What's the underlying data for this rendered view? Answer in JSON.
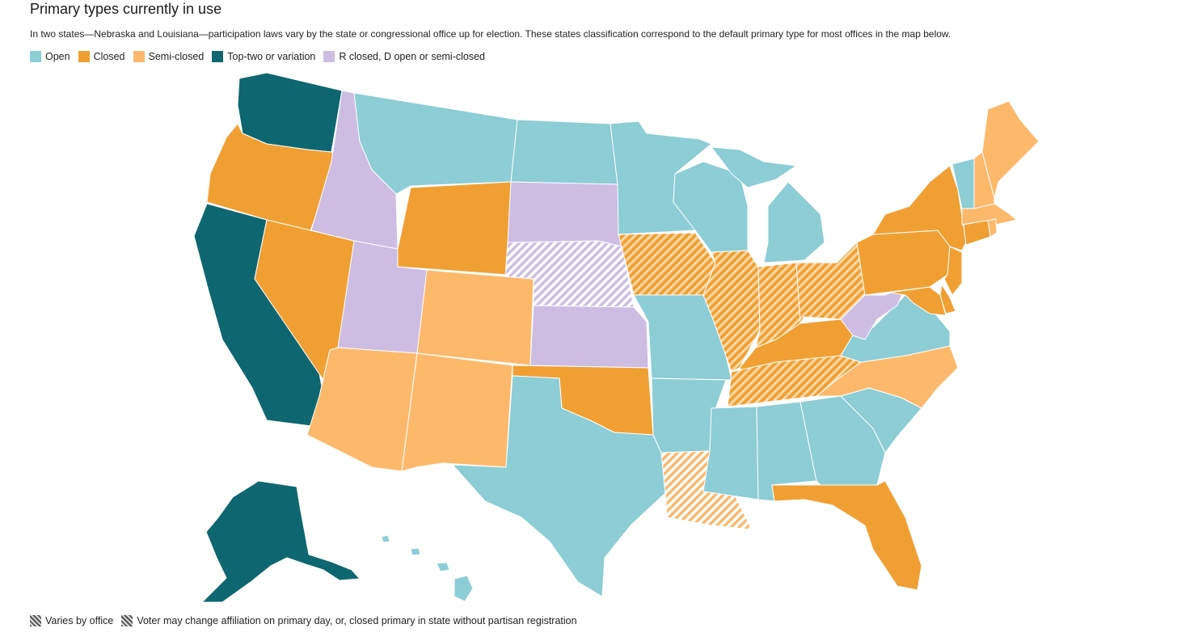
{
  "title": "Primary types currently in use",
  "subtitle": "In two states—Nebraska and Louisiana—participation laws vary by the state or congressional office up for election. These states classification correspond to the default primary type for most offices in the map below.",
  "legend": [
    {
      "label": "Open",
      "color": "#8ccdd6"
    },
    {
      "label": "Closed",
      "color": "#f0a033"
    },
    {
      "label": "Semi-closed",
      "color": "#fdb96b"
    },
    {
      "label": "Top-two or variation",
      "color": "#0e6770"
    },
    {
      "label": "R closed, D open or semi-closed",
      "color": "#cdbde3"
    }
  ],
  "hatch_legend": [
    {
      "label": "Varies by office"
    },
    {
      "label": "Voter may change affiliation on primary day, or, closed primary in state without partisan registration"
    }
  ],
  "states": {
    "washington": "Top-two or variation",
    "oregon": "Closed",
    "california": "Top-two or variation",
    "nevada": "Closed",
    "idaho": "R closed, D open or semi-closed",
    "montana": "Open",
    "wyoming": "Closed",
    "utah": "R closed, D open or semi-closed",
    "arizona": "Semi-closed",
    "colorado": "Semi-closed",
    "new_mexico": "Semi-closed",
    "north_dakota": "Open",
    "south_dakota": "R closed, D open or semi-closed",
    "nebraska": "R closed, D open or semi-closed",
    "kansas": "R closed, D open or semi-closed",
    "oklahoma": "Closed",
    "texas": "Open",
    "minnesota": "Open",
    "iowa": "Closed",
    "missouri": "Open",
    "arkansas": "Open",
    "louisiana": "Semi-closed",
    "wisconsin": "Open",
    "illinois": "Closed",
    "michigan": "Open",
    "indiana": "Closed",
    "ohio": "Closed",
    "kentucky": "Closed",
    "tennessee": "Closed",
    "mississippi": "Open",
    "alabama": "Open",
    "georgia": "Open",
    "florida": "Closed",
    "south_carolina": "Open",
    "north_carolina": "Semi-closed",
    "virginia": "Open",
    "west_virginia": "R closed, D open or semi-closed",
    "pennsylvania": "Closed",
    "new_york": "Closed",
    "new_jersey": "Closed",
    "delaware": "Closed",
    "maryland": "Closed",
    "connecticut": "Closed",
    "rhode_island": "Semi-closed",
    "massachusetts": "Semi-closed",
    "vermont": "Open",
    "new_hampshire": "Semi-closed",
    "maine": "Semi-closed",
    "alaska": "Top-two or variation",
    "hawaii": "Open"
  },
  "hatched_states": {
    "nebraska": "Varies by office",
    "louisiana": "Varies by office",
    "iowa": "Voter may change affiliation on primary day, or, closed primary in state without partisan registration",
    "illinois": "Voter may change affiliation on primary day, or, closed primary in state without partisan registration",
    "indiana": "Voter may change affiliation on primary day, or, closed primary in state without partisan registration",
    "ohio": "Voter may change affiliation on primary day, or, closed primary in state without partisan registration",
    "tennessee": "Voter may change affiliation on primary day, or, closed primary in state without partisan registration"
  }
}
